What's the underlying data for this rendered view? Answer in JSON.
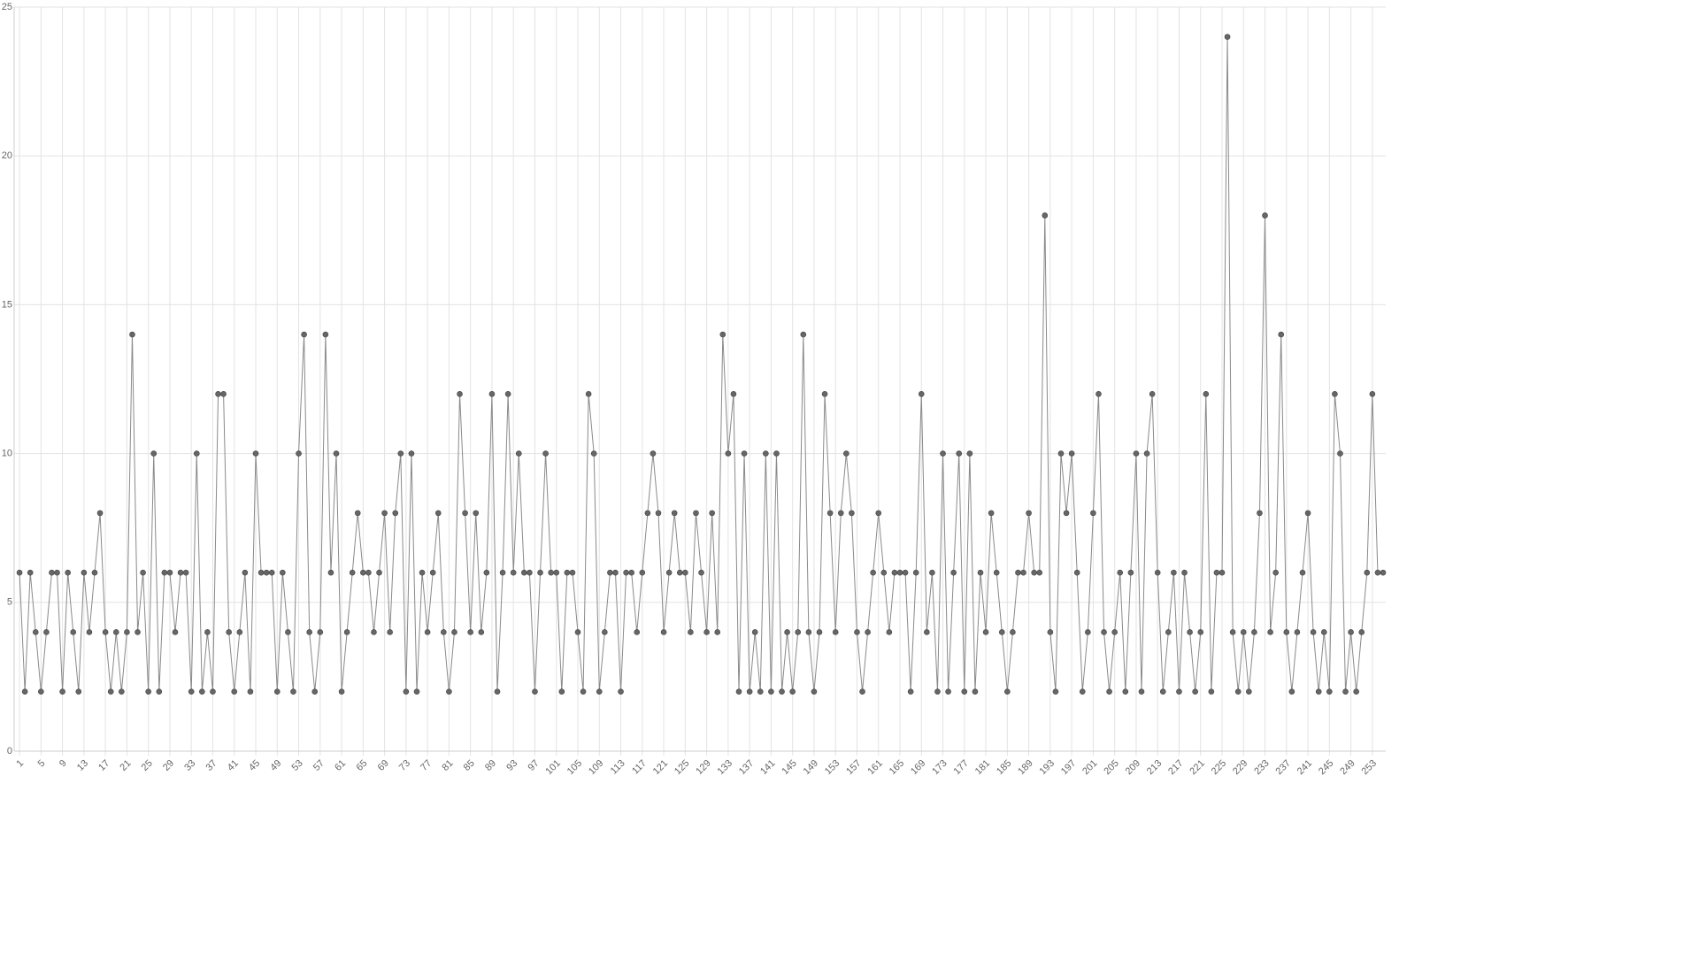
{
  "chart_data": {
    "type": "line",
    "x": [
      1,
      2,
      3,
      4,
      5,
      6,
      7,
      8,
      9,
      10,
      11,
      12,
      13,
      14,
      15,
      16,
      17,
      18,
      19,
      20,
      21,
      22,
      23,
      24,
      25,
      26,
      27,
      28,
      29,
      30,
      31,
      32,
      33,
      34,
      35,
      36,
      37,
      38,
      39,
      40,
      41,
      42,
      43,
      44,
      45,
      46,
      47,
      48,
      49,
      50,
      51,
      52,
      53,
      54,
      55,
      56,
      57,
      58,
      59,
      60,
      61,
      62,
      63,
      64,
      65,
      66,
      67,
      68,
      69,
      70,
      71,
      72,
      73,
      74,
      75,
      76,
      77,
      78,
      79,
      80,
      81,
      82,
      83,
      84,
      85,
      86,
      87,
      88,
      89,
      90,
      91,
      92,
      93,
      94,
      95,
      96,
      97,
      98,
      99,
      100,
      101,
      102,
      103,
      104,
      105,
      106,
      107,
      108,
      109,
      110,
      111,
      112,
      113,
      114,
      115,
      116,
      117,
      118,
      119,
      120,
      121,
      122,
      123,
      124,
      125,
      126,
      127,
      128,
      129,
      130,
      131,
      132,
      133,
      134,
      135,
      136,
      137,
      138,
      139,
      140,
      141,
      142,
      143,
      144,
      145,
      146,
      147,
      148,
      149,
      150,
      151,
      152,
      153,
      154,
      155,
      156,
      157,
      158,
      159,
      160,
      161,
      162,
      163,
      164,
      165,
      166,
      167,
      168,
      169,
      170,
      171,
      172,
      173,
      174,
      175,
      176,
      177,
      178,
      179,
      180,
      181,
      182,
      183,
      184,
      185,
      186,
      187,
      188,
      189,
      190,
      191,
      192,
      193,
      194,
      195,
      196,
      197,
      198,
      199,
      200,
      201,
      202,
      203,
      204,
      205,
      206,
      207,
      208,
      209,
      210,
      211,
      212,
      213,
      214,
      215,
      216,
      217,
      218,
      219,
      220,
      221,
      222,
      223,
      224,
      225,
      226,
      227,
      228,
      229,
      230,
      231,
      232,
      233,
      234,
      235,
      236,
      237,
      238,
      239,
      240,
      241,
      242,
      243,
      244,
      245,
      246,
      247,
      248,
      249,
      250,
      251,
      252,
      253,
      254,
      255
    ],
    "values": [
      6,
      2,
      6,
      4,
      2,
      4,
      6,
      6,
      2,
      6,
      4,
      2,
      6,
      4,
      6,
      8,
      4,
      2,
      4,
      2,
      4,
      14,
      4,
      6,
      2,
      10,
      2,
      6,
      6,
      4,
      6,
      6,
      2,
      10,
      2,
      4,
      2,
      12,
      12,
      4,
      2,
      4,
      6,
      2,
      10,
      6,
      6,
      6,
      2,
      6,
      4,
      2,
      10,
      14,
      4,
      2,
      4,
      14,
      6,
      10,
      2,
      4,
      6,
      8,
      6,
      6,
      4,
      6,
      8,
      4,
      8,
      10,
      2,
      10,
      2,
      6,
      4,
      6,
      8,
      4,
      2,
      4,
      12,
      8,
      4,
      8,
      4,
      6,
      12,
      2,
      6,
      12,
      6,
      10,
      6,
      6,
      2,
      6,
      10,
      6,
      6,
      2,
      6,
      6,
      4,
      2,
      12,
      10,
      2,
      4,
      6,
      6,
      2,
      6,
      6,
      4,
      6,
      8,
      10,
      8,
      4,
      6,
      8,
      6,
      6,
      4,
      8,
      6,
      4,
      8,
      4,
      14,
      10,
      12,
      2,
      10,
      2,
      4,
      2,
      10,
      2,
      10,
      2,
      4,
      2,
      4,
      14,
      4,
      2,
      4,
      12,
      8,
      4,
      8,
      10,
      8,
      4,
      2,
      4,
      6,
      8,
      6,
      4,
      6,
      6,
      6,
      2,
      6,
      12,
      4,
      6,
      2,
      10,
      2,
      6,
      10,
      2,
      10,
      2,
      6,
      4,
      8,
      6,
      4,
      2,
      4,
      6,
      6,
      8,
      6,
      6,
      18,
      4,
      2,
      10,
      8,
      10,
      6,
      2,
      4,
      8,
      12,
      4,
      2,
      4,
      6,
      2,
      6,
      10,
      2,
      10,
      12,
      6,
      2,
      4,
      6,
      2,
      6,
      4,
      2,
      4,
      12,
      2,
      6,
      6,
      24,
      4,
      2,
      4,
      2,
      4,
      8,
      18,
      4,
      6,
      14,
      4,
      2,
      4,
      6,
      8,
      4,
      2,
      4,
      2,
      12,
      10,
      2,
      4,
      2,
      4,
      6,
      12,
      6,
      6
    ],
    "color": "#666666",
    "xlim": [
      0,
      255
    ],
    "xticks": [
      1,
      5,
      9,
      13,
      17,
      21,
      25,
      29,
      33,
      37,
      41,
      45,
      49,
      53,
      57,
      61,
      65,
      69,
      73,
      77,
      81,
      85,
      89,
      93,
      97,
      101,
      105,
      109,
      113,
      117,
      121,
      125,
      129,
      133,
      137,
      141,
      145,
      149,
      153,
      157,
      161,
      165,
      169,
      173,
      177,
      181,
      185,
      189,
      193,
      197,
      201,
      205,
      209,
      213,
      217,
      221,
      225,
      229,
      233,
      237,
      241,
      245,
      249,
      253
    ],
    "ylim": [
      0,
      25
    ],
    "yticks": [
      0,
      5,
      10,
      15,
      20,
      25
    ],
    "grid": true
  }
}
